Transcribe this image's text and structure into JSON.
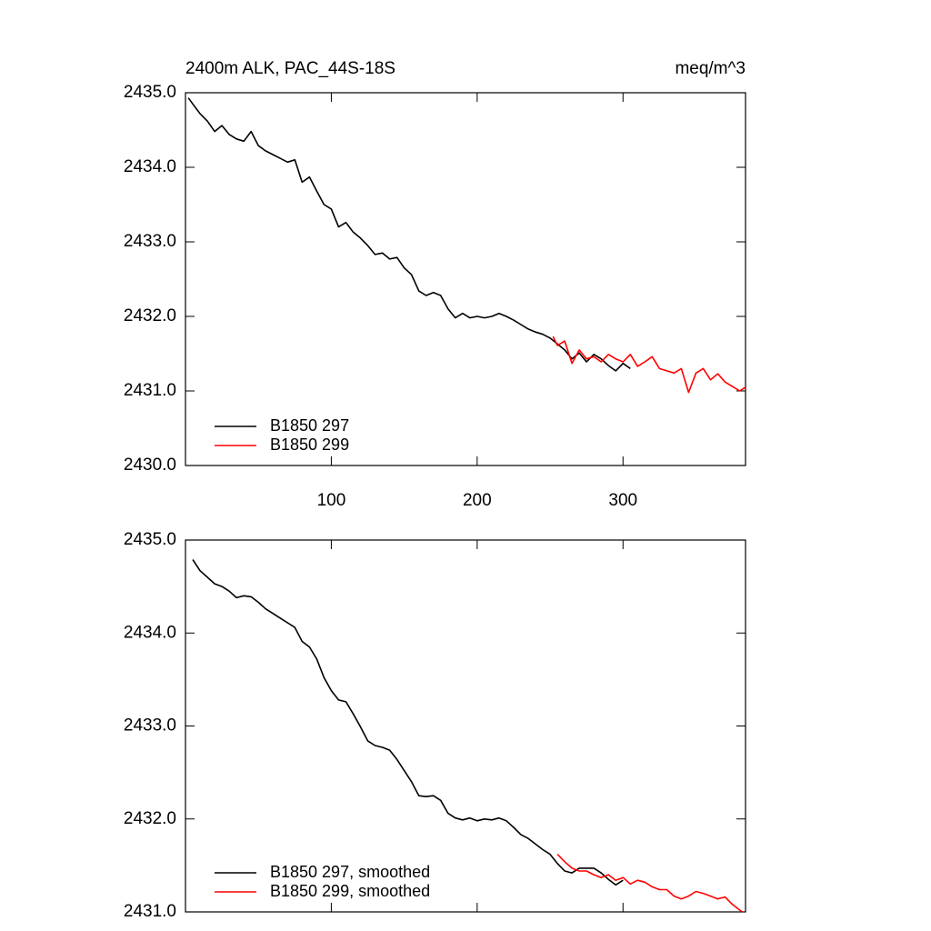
{
  "chart_data": [
    {
      "type": "line",
      "title": "2400m ALK, PAC_44S-18S",
      "subtitle": "meq/m^3",
      "xlim": [
        0,
        384
      ],
      "xticks": [
        100,
        200,
        300
      ],
      "ylim": [
        2430,
        2435
      ],
      "yticks": [
        {
          "value": 2430,
          "label": "2430.0"
        },
        {
          "value": 2431,
          "label": "2431.0"
        },
        {
          "value": 2432,
          "label": "2432.0"
        },
        {
          "value": 2433,
          "label": "2433.0"
        },
        {
          "value": 2434,
          "label": "2434.0"
        },
        {
          "value": 2435,
          "label": "2435.0"
        }
      ],
      "legend": "lower left",
      "series": [
        {
          "name": "B1850 297",
          "color": "#000000",
          "x": [
            2,
            5,
            10,
            15,
            20,
            25,
            30,
            35,
            40,
            45,
            50,
            55,
            60,
            65,
            70,
            75,
            80,
            85,
            90,
            95,
            100,
            105,
            110,
            115,
            120,
            125,
            130,
            135,
            140,
            145,
            150,
            155,
            160,
            165,
            170,
            175,
            180,
            185,
            190,
            195,
            200,
            205,
            210,
            215,
            220,
            225,
            230,
            235,
            240,
            245,
            250,
            255,
            260,
            265,
            270,
            275,
            280,
            285,
            290,
            295,
            300,
            305
          ],
          "values": [
            2434.93,
            2434.85,
            2434.72,
            2434.62,
            2434.48,
            2434.56,
            2434.44,
            2434.38,
            2434.35,
            2434.48,
            2434.29,
            2434.22,
            2434.17,
            2434.12,
            2434.07,
            2434.1,
            2433.8,
            2433.87,
            2433.68,
            2433.5,
            2433.44,
            2433.2,
            2433.26,
            2433.13,
            2433.05,
            2432.95,
            2432.83,
            2432.85,
            2432.77,
            2432.79,
            2432.65,
            2432.56,
            2432.34,
            2432.28,
            2432.32,
            2432.28,
            2432.1,
            2431.98,
            2432.04,
            2431.98,
            2432.0,
            2431.98,
            2432.0,
            2432.04,
            2432.0,
            2431.95,
            2431.89,
            2431.83,
            2431.79,
            2431.76,
            2431.71,
            2431.63,
            2431.55,
            2431.43,
            2431.51,
            2431.39,
            2431.49,
            2431.43,
            2431.34,
            2431.27,
            2431.37,
            2431.3
          ]
        },
        {
          "name": "B1850 299",
          "color": "#ff0000",
          "x": [
            252,
            255,
            260,
            265,
            270,
            275,
            280,
            285,
            290,
            295,
            300,
            305,
            310,
            315,
            320,
            325,
            330,
            335,
            340,
            345,
            350,
            355,
            360,
            365,
            370,
            375,
            380,
            384
          ],
          "values": [
            2431.73,
            2431.61,
            2431.67,
            2431.37,
            2431.55,
            2431.43,
            2431.46,
            2431.39,
            2431.49,
            2431.43,
            2431.39,
            2431.49,
            2431.33,
            2431.39,
            2431.46,
            2431.3,
            2431.27,
            2431.24,
            2431.3,
            2430.98,
            2431.24,
            2431.3,
            2431.15,
            2431.23,
            2431.12,
            2431.06,
            2431.0,
            2431.05
          ]
        }
      ]
    },
    {
      "type": "line",
      "xlim": [
        0,
        384
      ],
      "xticks": [
        100,
        200,
        300
      ],
      "ylim": [
        2431,
        2435
      ],
      "yticks": [
        {
          "value": 2431,
          "label": "2431.0"
        },
        {
          "value": 2432,
          "label": "2432.0"
        },
        {
          "value": 2433,
          "label": "2433.0"
        },
        {
          "value": 2434,
          "label": "2434.0"
        },
        {
          "value": 2435,
          "label": "2435.0"
        }
      ],
      "legend": "lower left",
      "series": [
        {
          "name": "B1850 297, smoothed",
          "color": "#000000",
          "x": [
            5,
            10,
            15,
            20,
            25,
            30,
            35,
            40,
            45,
            50,
            55,
            60,
            65,
            70,
            75,
            80,
            85,
            90,
            95,
            100,
            105,
            110,
            115,
            120,
            125,
            130,
            135,
            140,
            145,
            150,
            155,
            160,
            165,
            170,
            175,
            180,
            185,
            190,
            195,
            200,
            205,
            210,
            215,
            220,
            225,
            230,
            235,
            240,
            245,
            250,
            255,
            260,
            265,
            270,
            275,
            280,
            285,
            290,
            295,
            300
          ],
          "values": [
            2434.79,
            2434.67,
            2434.6,
            2434.53,
            2434.5,
            2434.45,
            2434.38,
            2434.4,
            2434.39,
            2434.33,
            2434.26,
            2434.21,
            2434.16,
            2434.11,
            2434.06,
            2433.91,
            2433.85,
            2433.72,
            2433.52,
            2433.38,
            2433.28,
            2433.26,
            2433.13,
            2432.99,
            2432.84,
            2432.79,
            2432.77,
            2432.74,
            2432.64,
            2432.52,
            2432.4,
            2432.25,
            2432.24,
            2432.25,
            2432.2,
            2432.06,
            2432.01,
            2431.99,
            2432.01,
            2431.98,
            2432.0,
            2431.99,
            2432.01,
            2431.98,
            2431.91,
            2431.83,
            2431.79,
            2431.73,
            2431.67,
            2431.62,
            2431.52,
            2431.44,
            2431.42,
            2431.47,
            2431.47,
            2431.47,
            2431.42,
            2431.35,
            2431.29,
            2431.34
          ]
        },
        {
          "name": "B1850 299, smoothed",
          "color": "#ff0000",
          "x": [
            255,
            260,
            265,
            270,
            275,
            280,
            285,
            290,
            295,
            300,
            305,
            310,
            315,
            320,
            325,
            330,
            335,
            340,
            345,
            350,
            355,
            360,
            365,
            370,
            375,
            380,
            382
          ],
          "values": [
            2431.62,
            2431.54,
            2431.47,
            2431.44,
            2431.44,
            2431.4,
            2431.37,
            2431.4,
            2431.34,
            2431.37,
            2431.3,
            2431.34,
            2431.32,
            2431.27,
            2431.24,
            2431.24,
            2431.17,
            2431.14,
            2431.17,
            2431.22,
            2431.2,
            2431.17,
            2431.14,
            2431.16,
            2431.08,
            2431.02,
            2431.0
          ]
        }
      ]
    }
  ]
}
